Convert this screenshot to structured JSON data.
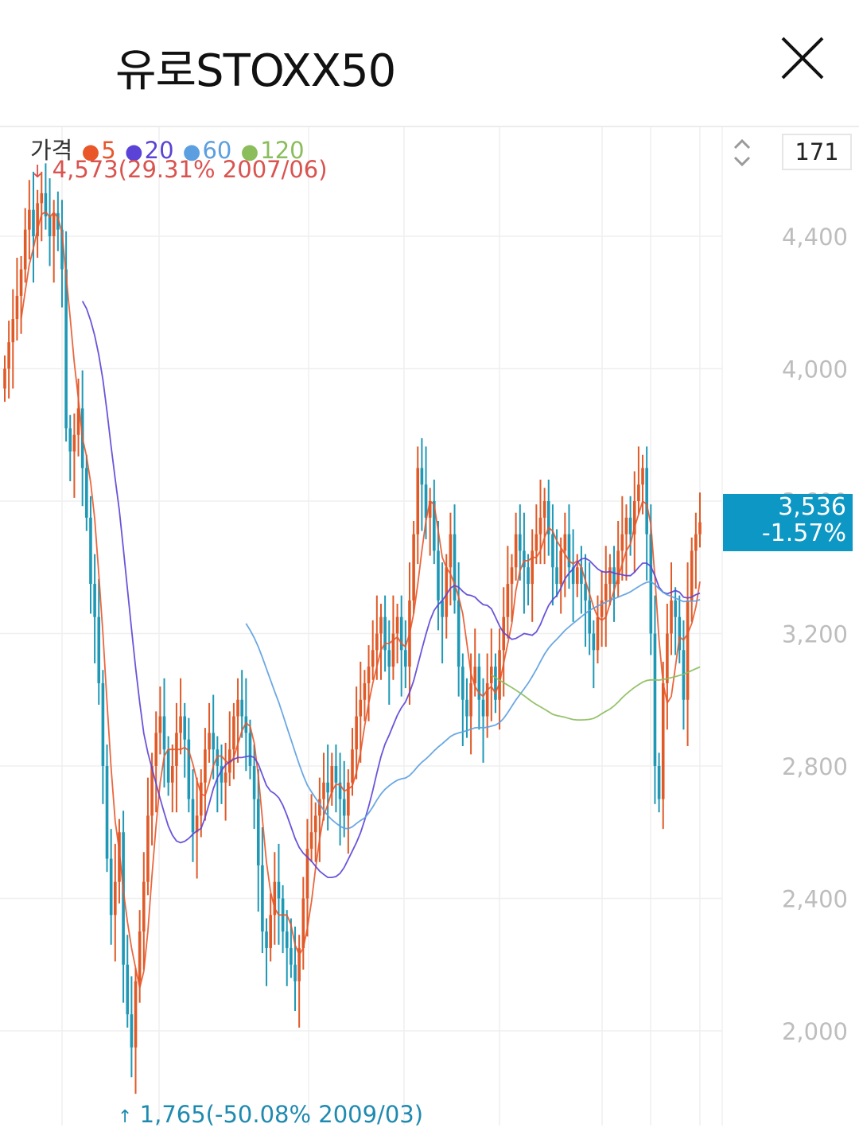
{
  "header": {
    "title": "유로STOXX50"
  },
  "legend": {
    "price_label": "가격",
    "ma": [
      {
        "label": "5",
        "color": "#e8562a"
      },
      {
        "label": "20",
        "color": "#5a43d6"
      },
      {
        "label": "60",
        "color": "#5b9fe0"
      },
      {
        "label": "120",
        "color": "#8bbd5c"
      }
    ]
  },
  "annotations": {
    "high": "4,573(29.31% 2007/06)",
    "low": "1,765(-50.08% 2009/03)"
  },
  "controls": {
    "period": "171"
  },
  "current": {
    "price": "3,536",
    "change": "-1.57%",
    "color": "#0c97c4"
  },
  "colors": {
    "up": "#e05a28",
    "down": "#1f98b5",
    "grid": "#efefef",
    "axis_text": "#bdbdbd"
  },
  "chart_data": {
    "type": "candlestick",
    "title": "",
    "y_ticks": [
      2000,
      2400,
      2800,
      3200,
      3600,
      4000,
      4400
    ],
    "y_tick_labels": [
      "2,000",
      "2,400",
      "2,800",
      "3,200",
      "3,600",
      "4,000",
      "4,400"
    ],
    "ylim": [
      1700,
      4700
    ],
    "grid": true,
    "high": 4573,
    "low": 1765,
    "last": 3536,
    "close_series": [
      4000,
      4080,
      4150,
      4220,
      4300,
      4420,
      4480,
      4400,
      4500,
      4530,
      4460,
      4400,
      4470,
      4420,
      4300,
      3820,
      3750,
      3800,
      3880,
      3700,
      3550,
      3350,
      3250,
      3050,
      2800,
      2520,
      2350,
      2450,
      2600,
      2200,
      2050,
      1950,
      2150,
      2300,
      2450,
      2650,
      2800,
      2900,
      2950,
      2850,
      2750,
      2800,
      2900,
      2950,
      2880,
      2700,
      2600,
      2650,
      2750,
      2850,
      2900,
      2850,
      2800,
      2750,
      2780,
      2850,
      2950,
      3000,
      2950,
      2900,
      2800,
      2700,
      2500,
      2300,
      2250,
      2350,
      2450,
      2400,
      2300,
      2250,
      2200,
      2150,
      2250,
      2400,
      2550,
      2600,
      2650,
      2700,
      2750,
      2720,
      2800,
      2750,
      2700,
      2650,
      2750,
      2850,
      2950,
      3000,
      3050,
      3100,
      3150,
      3200,
      3250,
      3150,
      3100,
      3200,
      3250,
      3150,
      3100,
      3300,
      3500,
      3700,
      3650,
      3550,
      3600,
      3450,
      3300,
      3250,
      3400,
      3500,
      3300,
      3100,
      3000,
      2950,
      3050,
      3100,
      3000,
      2950,
      3050,
      3100,
      3000,
      3150,
      3250,
      3350,
      3400,
      3500,
      3450,
      3400,
      3350,
      3450,
      3500,
      3550,
      3600,
      3500,
      3400,
      3350,
      3450,
      3500,
      3400,
      3350,
      3400,
      3350,
      3300,
      3200,
      3150,
      3250,
      3300,
      3350,
      3400,
      3350,
      3450,
      3500,
      3550,
      3500,
      3600,
      3650,
      3700,
      3500,
      3200,
      2800,
      2700,
      3050,
      3200,
      3300,
      3250,
      3150,
      3000,
      3300,
      3450,
      3500,
      3536
    ]
  }
}
